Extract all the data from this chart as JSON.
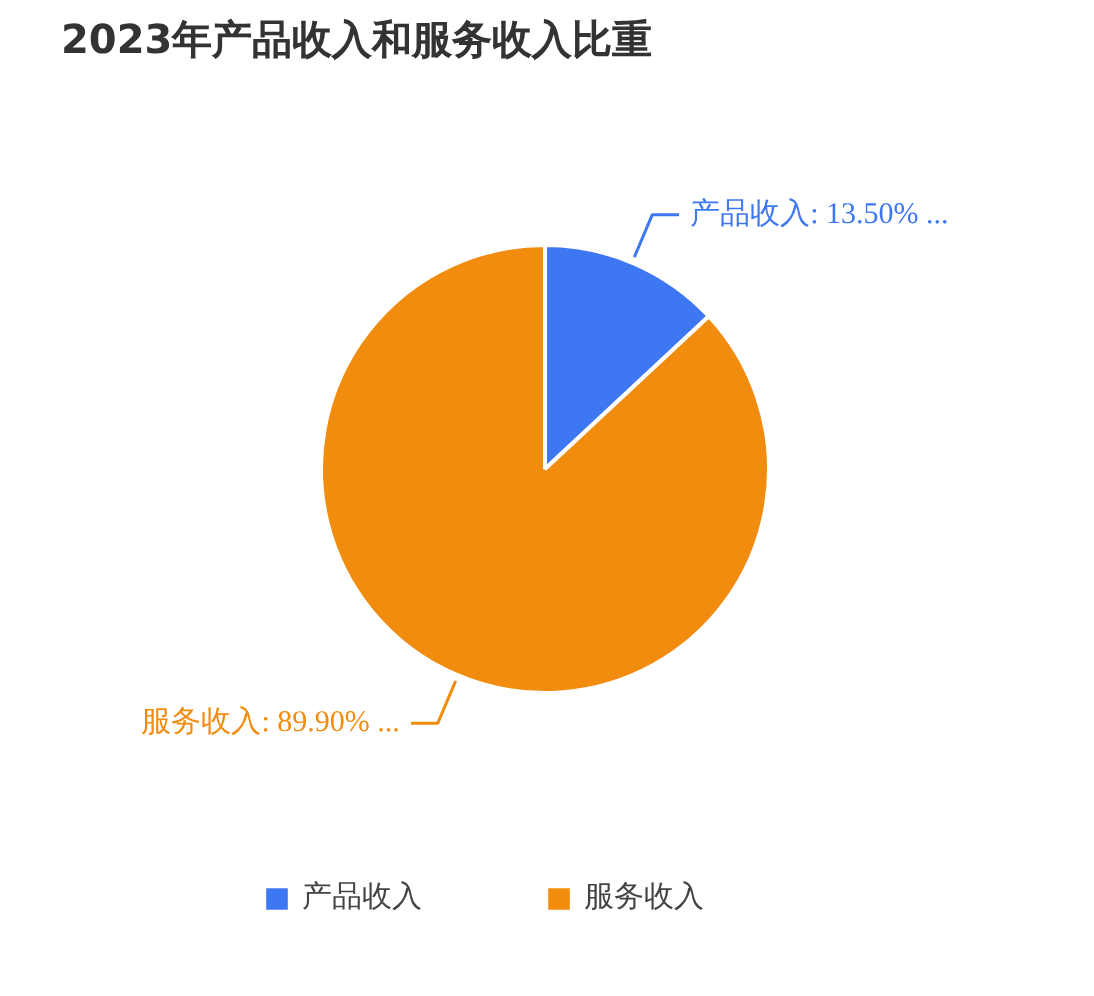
{
  "chart_data": {
    "type": "pie",
    "title": "2023年产品收入和服务收入比重",
    "categories": [
      "产品收入",
      "服务收入"
    ],
    "values": [
      13.5,
      89.9
    ],
    "value_labels": [
      "产品收入: 13.50% ...",
      "服务收入: 89.90% ..."
    ],
    "colors": [
      "#3e77f2",
      "#f28c0f"
    ],
    "legend": "bottom"
  }
}
